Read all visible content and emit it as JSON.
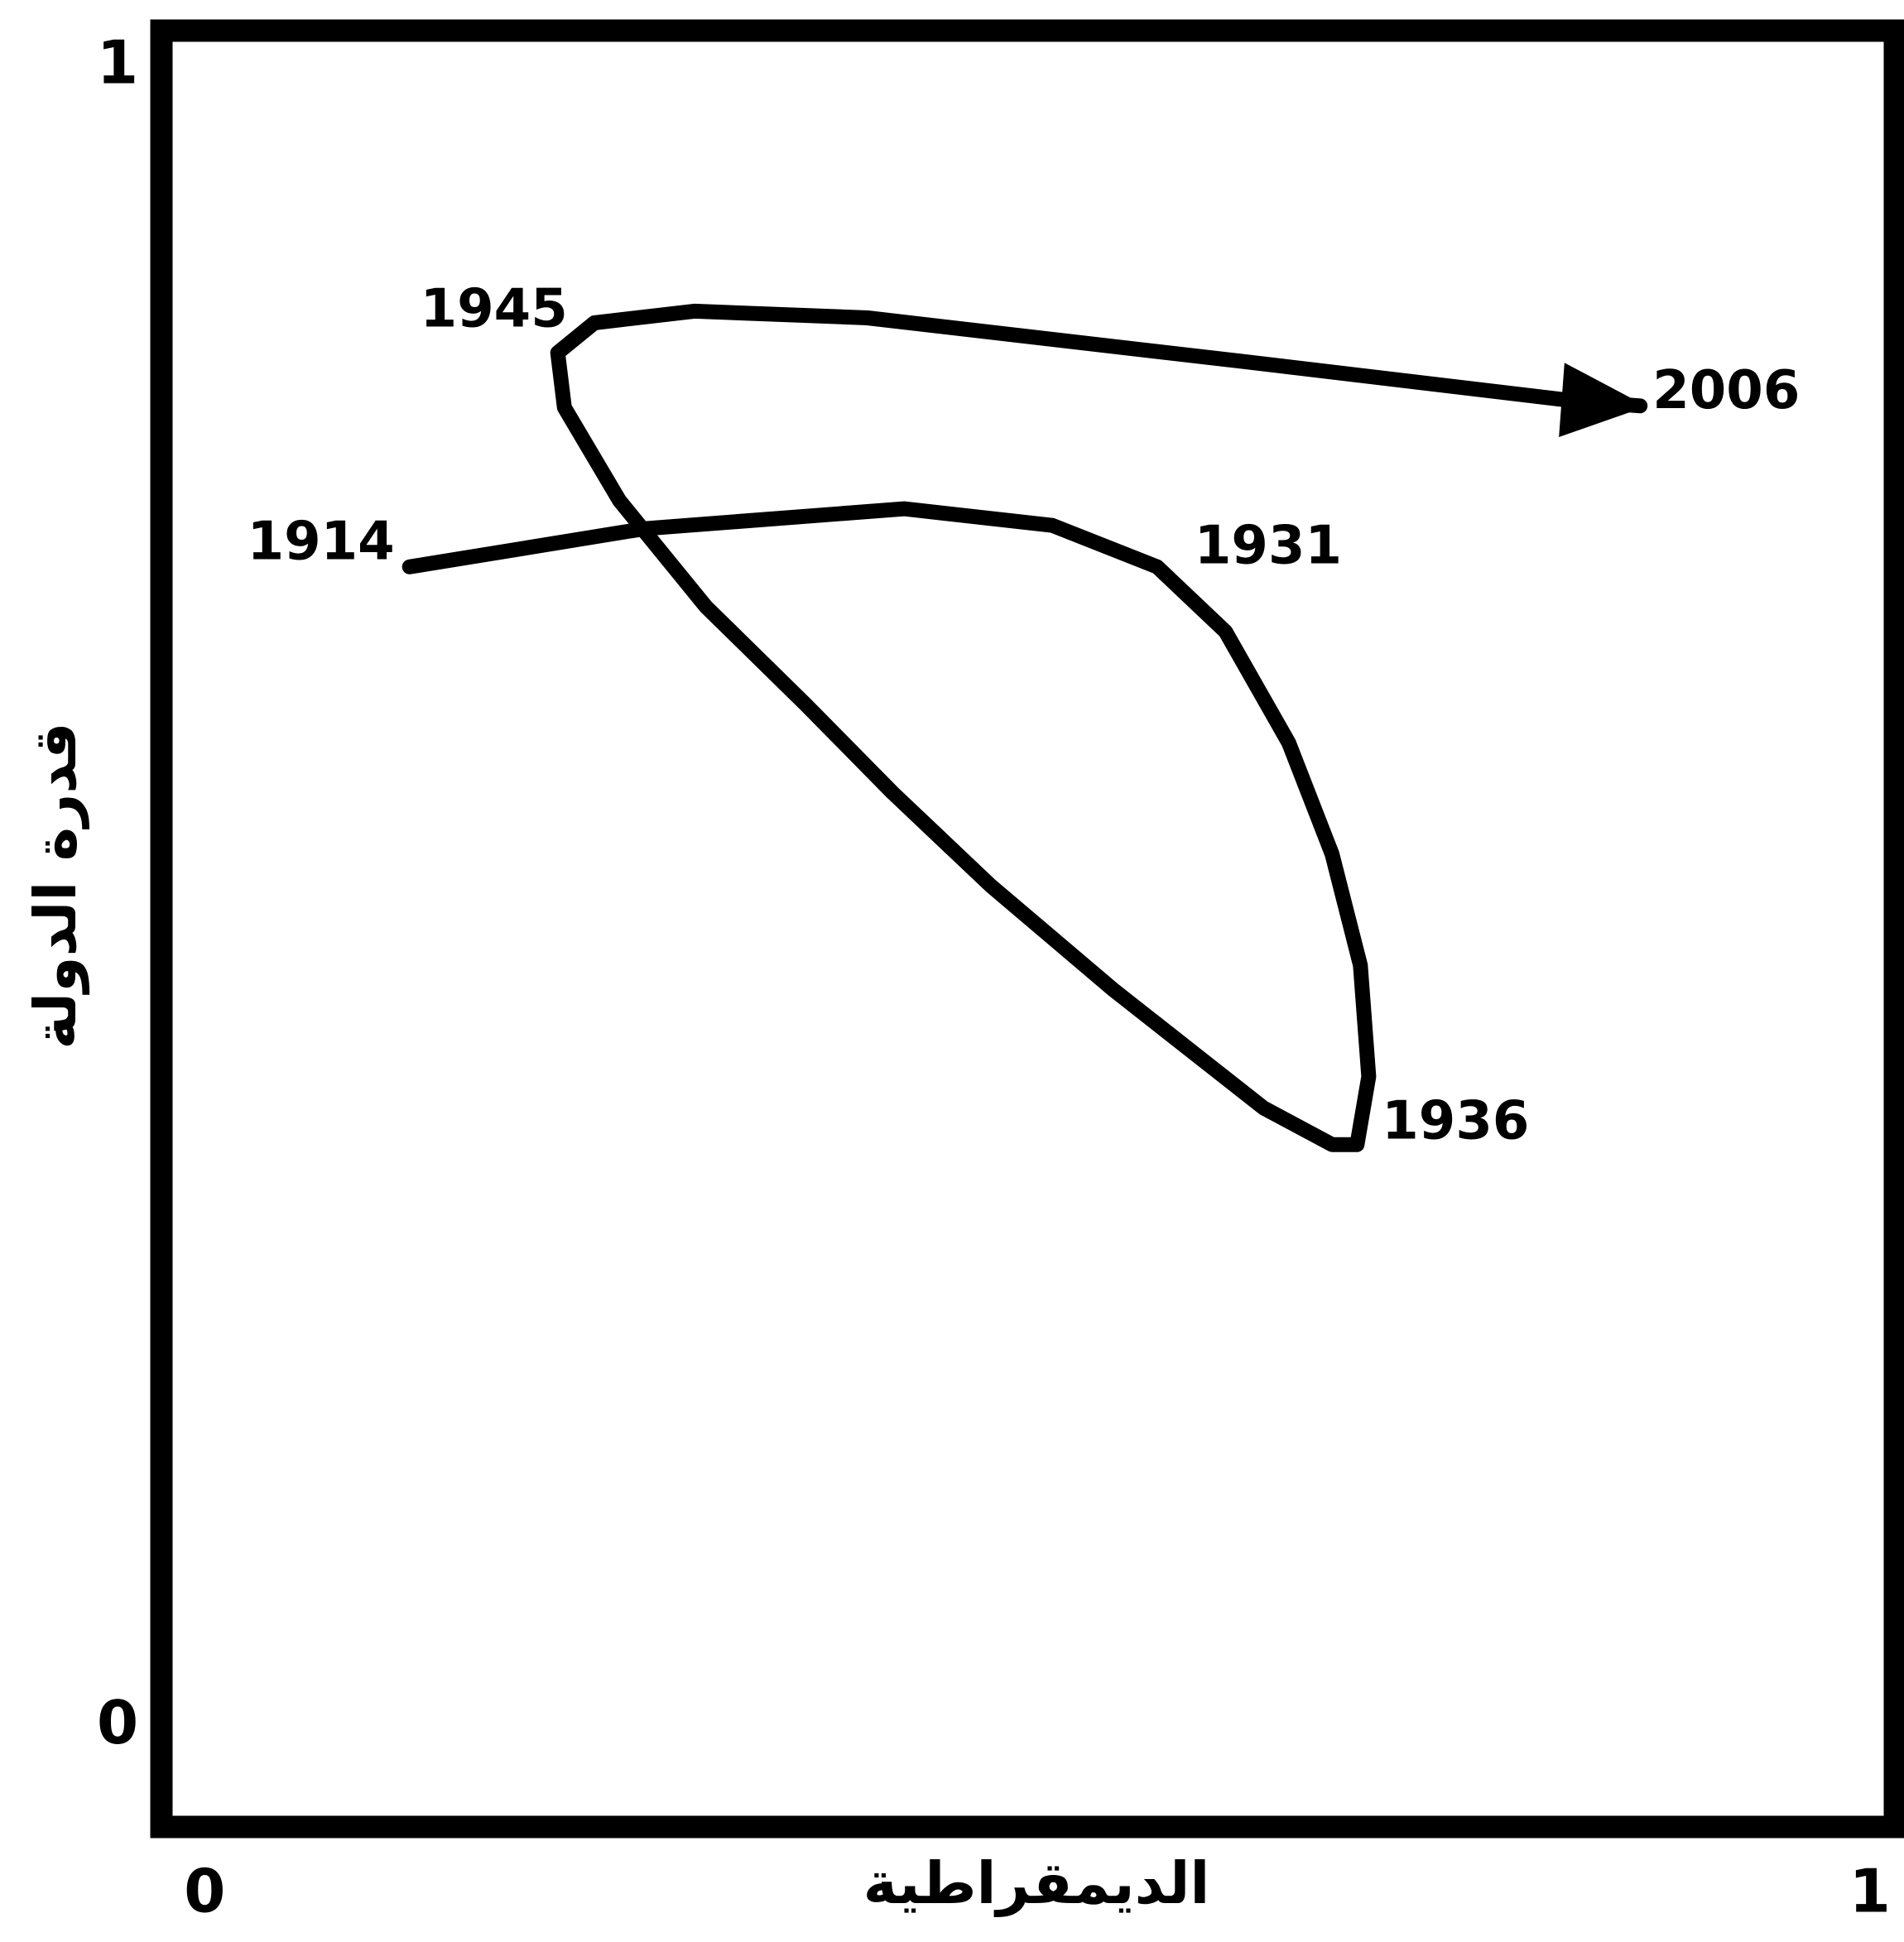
{
  "chart_data": {
    "type": "line",
    "x_label": "الديمقراطية",
    "y_label": "قدرة الدولة",
    "xlim": [
      -0.026,
      1.015
    ],
    "ylim": [
      -0.06,
      1.022
    ],
    "xticks": [
      0,
      1
    ],
    "yticks": [
      0,
      1
    ],
    "grid": false,
    "series": [
      {
        "color": "#000000",
        "x": [
          0.123,
          0.264,
          0.42,
          0.509,
          0.572,
          0.613,
          0.651,
          0.677,
          0.694,
          0.699,
          0.692,
          0.677,
          0.636,
          0.546,
          0.472,
          0.413,
          0.361,
          0.301,
          0.249,
          0.216,
          0.212,
          0.234,
          0.294,
          0.398,
          0.621,
          0.822,
          0.862
        ],
        "values": [
          0.699,
          0.722,
          0.734,
          0.724,
          0.699,
          0.66,
          0.593,
          0.526,
          0.459,
          0.392,
          0.351,
          0.351,
          0.373,
          0.444,
          0.507,
          0.563,
          0.616,
          0.675,
          0.739,
          0.795,
          0.828,
          0.846,
          0.853,
          0.849,
          0.823,
          0.799,
          0.796
        ],
        "point_labels": [
          "1914",
          null,
          null,
          null,
          "1931",
          null,
          null,
          null,
          null,
          null,
          "1936",
          null,
          null,
          null,
          null,
          null,
          null,
          null,
          null,
          null,
          "1945",
          null,
          null,
          null,
          null,
          null,
          "2006"
        ]
      }
    ]
  }
}
